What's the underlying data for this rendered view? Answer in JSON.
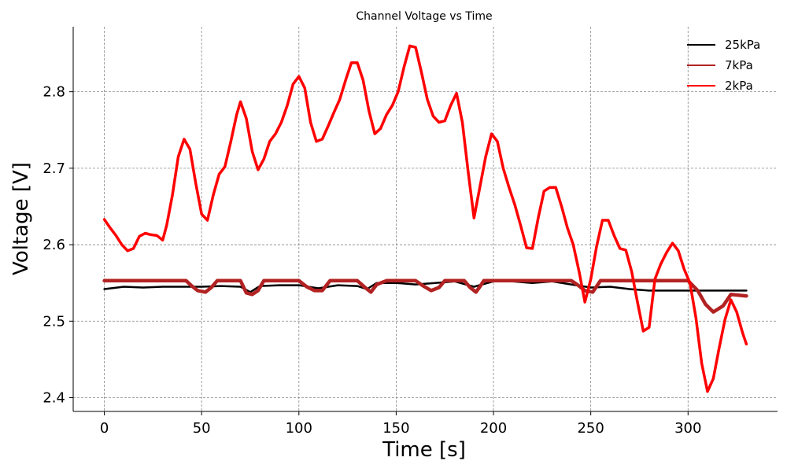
{
  "chart_data": {
    "type": "line",
    "title": "Channel Voltage vs Time",
    "xlabel": "Time [s]",
    "ylabel": "Voltage [V]",
    "xlim": [
      -16,
      346
    ],
    "ylim": [
      2.382,
      2.885
    ],
    "xticks": [
      0,
      50,
      100,
      150,
      200,
      250,
      300
    ],
    "yticks": [
      2.4,
      2.5,
      2.6,
      2.7,
      2.8
    ],
    "ytick_labels": [
      "2.4",
      "2.5",
      "2.6",
      "2.7",
      "2.8"
    ],
    "grid": true,
    "legend_position": "top-right",
    "series": [
      {
        "name": "25kPa",
        "color": "#000000",
        "x": [
          0,
          10,
          20,
          30,
          40,
          50,
          60,
          70,
          75,
          80,
          90,
          100,
          110,
          120,
          130,
          135,
          140,
          150,
          160,
          170,
          180,
          190,
          200,
          210,
          220,
          230,
          240,
          250,
          260,
          270,
          280,
          290,
          300,
          310,
          320,
          330
        ],
        "y": [
          2.542,
          2.545,
          2.544,
          2.545,
          2.545,
          2.545,
          2.546,
          2.545,
          2.538,
          2.546,
          2.547,
          2.547,
          2.543,
          2.547,
          2.546,
          2.542,
          2.55,
          2.55,
          2.548,
          2.55,
          2.552,
          2.545,
          2.552,
          2.552,
          2.55,
          2.552,
          2.548,
          2.544,
          2.545,
          2.542,
          2.54,
          2.54,
          2.54,
          2.54,
          2.54,
          2.54
        ]
      },
      {
        "name": "7kPa",
        "color": "#b22222",
        "x": [
          0,
          42,
          45,
          48,
          52,
          55,
          58,
          70,
          73,
          76,
          79,
          82,
          100,
          104,
          108,
          112,
          116,
          130,
          134,
          137,
          140,
          145,
          160,
          164,
          168,
          172,
          175,
          185,
          188,
          191,
          193,
          195,
          205,
          210,
          240,
          243,
          247,
          251,
          255,
          270,
          285,
          296,
          300,
          305,
          309,
          313,
          318,
          322,
          330
        ],
        "y": [
          2.553,
          2.553,
          2.546,
          2.54,
          2.538,
          2.544,
          2.553,
          2.553,
          2.537,
          2.535,
          2.54,
          2.553,
          2.553,
          2.545,
          2.54,
          2.54,
          2.553,
          2.553,
          2.544,
          2.538,
          2.548,
          2.553,
          2.553,
          2.546,
          2.54,
          2.544,
          2.553,
          2.553,
          2.544,
          2.538,
          2.545,
          2.553,
          2.553,
          2.553,
          2.553,
          2.548,
          2.54,
          2.538,
          2.553,
          2.553,
          2.553,
          2.553,
          2.553,
          2.54,
          2.522,
          2.512,
          2.52,
          2.535,
          2.533
        ]
      },
      {
        "name": "2kPa",
        "color": "#ff0000",
        "x": [
          0,
          3,
          6,
          9,
          12,
          15,
          18,
          21,
          24,
          27,
          30,
          32,
          35,
          38,
          41,
          44,
          47,
          50,
          53,
          56,
          59,
          62,
          65,
          68,
          70,
          73,
          76,
          79,
          82,
          85,
          88,
          91,
          94,
          97,
          100,
          103,
          106,
          109,
          112,
          115,
          118,
          121,
          124,
          127,
          130,
          133,
          136,
          139,
          142,
          145,
          148,
          151,
          154,
          157,
          160,
          163,
          166,
          169,
          172,
          175,
          178,
          181,
          184,
          187,
          190,
          193,
          196,
          199,
          202,
          205,
          208,
          211,
          214,
          217,
          220,
          223,
          226,
          229,
          232,
          235,
          238,
          241,
          244,
          247,
          250,
          253,
          256,
          259,
          262,
          265,
          268,
          271,
          274,
          277,
          280,
          283,
          286,
          289,
          292,
          295,
          298,
          301,
          304,
          307,
          310,
          313,
          316,
          319,
          322,
          325,
          328,
          330
        ],
        "y": [
          2.633,
          2.622,
          2.612,
          2.6,
          2.592,
          2.595,
          2.611,
          2.615,
          2.613,
          2.612,
          2.606,
          2.625,
          2.665,
          2.715,
          2.738,
          2.725,
          2.68,
          2.64,
          2.632,
          2.665,
          2.692,
          2.702,
          2.735,
          2.77,
          2.787,
          2.765,
          2.722,
          2.698,
          2.712,
          2.735,
          2.745,
          2.76,
          2.782,
          2.81,
          2.82,
          2.805,
          2.76,
          2.735,
          2.738,
          2.755,
          2.773,
          2.79,
          2.815,
          2.838,
          2.838,
          2.815,
          2.775,
          2.745,
          2.752,
          2.77,
          2.782,
          2.8,
          2.832,
          2.86,
          2.858,
          2.825,
          2.79,
          2.768,
          2.76,
          2.762,
          2.782,
          2.798,
          2.76,
          2.695,
          2.635,
          2.675,
          2.715,
          2.745,
          2.735,
          2.7,
          2.675,
          2.652,
          2.625,
          2.596,
          2.595,
          2.635,
          2.67,
          2.675,
          2.675,
          2.65,
          2.622,
          2.6,
          2.565,
          2.525,
          2.555,
          2.598,
          2.632,
          2.632,
          2.612,
          2.595,
          2.593,
          2.565,
          2.525,
          2.487,
          2.492,
          2.555,
          2.575,
          2.59,
          2.602,
          2.592,
          2.568,
          2.55,
          2.505,
          2.445,
          2.408,
          2.425,
          2.465,
          2.502,
          2.528,
          2.512,
          2.485,
          2.47
        ]
      }
    ]
  }
}
